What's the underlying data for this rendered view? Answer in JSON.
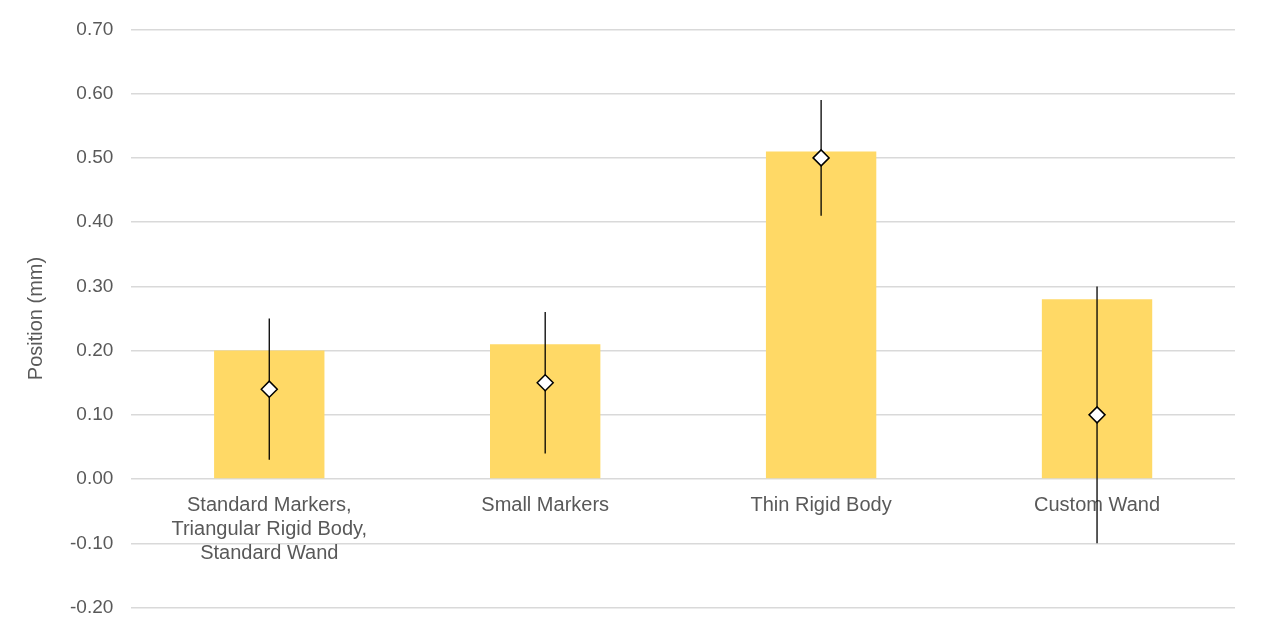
{
  "chart_data": {
    "type": "bar",
    "ylabel": "Position (mm)",
    "categories": [
      "Standard Markers, Triangular Rigid Body, Standard Wand",
      "Small Markers",
      "Thin Rigid Body",
      "Custom Wand"
    ],
    "series": [
      {
        "type": "bar",
        "color": "#ffd966",
        "values": [
          0.2,
          0.21,
          0.51,
          0.28
        ]
      },
      {
        "type": "scatter",
        "color": "#000000",
        "marker": "diamond",
        "x": [
          "Standard Markers, Triangular Rigid Body, Standard Wand",
          "Small Markers",
          "Thin Rigid Body",
          "Custom Wand"
        ],
        "values": [
          0.14,
          0.15,
          0.5,
          0.1
        ],
        "errors": [
          0.11,
          0.11,
          0.09,
          0.2
        ]
      }
    ],
    "ylim": [
      -0.2,
      0.7
    ],
    "yticks": [
      {
        "value": -0.2,
        "label": "-0.20"
      },
      {
        "value": -0.1,
        "label": "-0.10"
      },
      {
        "value": 0,
        "label": "0.00"
      },
      {
        "value": 0.1,
        "label": "0.10"
      },
      {
        "value": 0.2,
        "label": "0.20"
      },
      {
        "value": 0.3,
        "label": "0.30"
      },
      {
        "value": 0.4,
        "label": "0.40"
      },
      {
        "value": 0.5,
        "label": "0.50"
      },
      {
        "value": 0.6,
        "label": "0.60"
      },
      {
        "value": 0.7,
        "label": "0.70"
      }
    ],
    "grid": "y",
    "legend": false
  }
}
